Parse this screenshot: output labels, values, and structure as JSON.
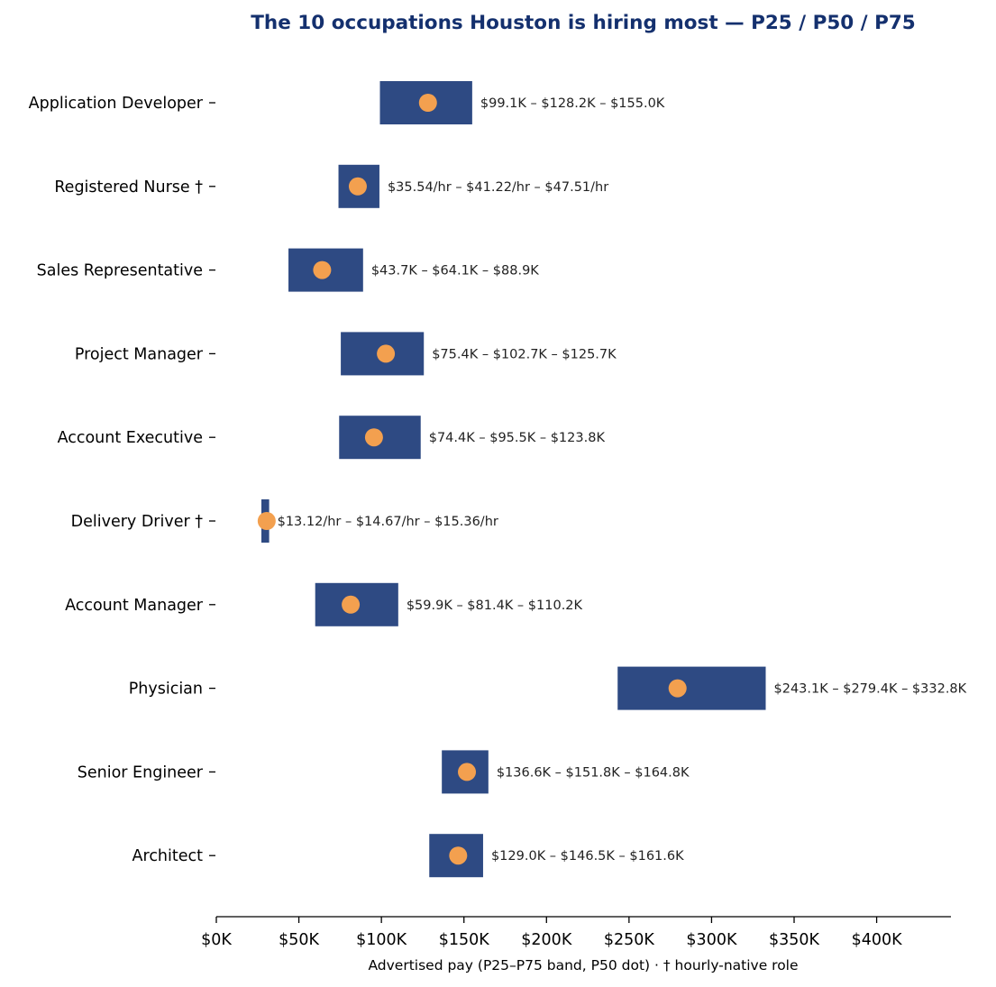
{
  "chart_data": {
    "type": "bar",
    "title": "The 10 occupations Houston is hiring most — P25 / P50 / P75",
    "xlabel": "Advertised pay (P25–P75 band, P50 dot) · † hourly-native role",
    "ylabel": "",
    "xlim": [
      0,
      445000
    ],
    "xticks": [
      0,
      50000,
      100000,
      150000,
      200000,
      250000,
      300000,
      350000,
      400000
    ],
    "xtick_labels": [
      "$0K",
      "$50K",
      "$100K",
      "$150K",
      "$200K",
      "$250K",
      "$300K",
      "$350K",
      "$400K"
    ],
    "grid": false,
    "legend": "none",
    "colors": {
      "band": "#2e4a83",
      "median": "#f3a04f",
      "title": "#14306e"
    },
    "categories": [
      "Application Developer",
      "Registered Nurse †",
      "Sales Representative",
      "Project Manager",
      "Account Executive",
      "Delivery Driver †",
      "Account Manager",
      "Physician",
      "Senior Engineer",
      "Architect"
    ],
    "p25": [
      99100,
      74000,
      43700,
      75400,
      74400,
      27300,
      59900,
      243100,
      136600,
      129000
    ],
    "p50": [
      128200,
      85700,
      64100,
      102700,
      95500,
      30500,
      81400,
      279400,
      151800,
      146500
    ],
    "p75": [
      155000,
      98800,
      88900,
      125700,
      123800,
      32000,
      110200,
      332800,
      164800,
      161600
    ],
    "data_labels": [
      "$99.1K – $128.2K – $155.0K",
      "$35.54/hr – $41.22/hr – $47.51/hr",
      "$43.7K – $64.1K – $88.9K",
      "$75.4K – $102.7K – $125.7K",
      "$74.4K – $95.5K – $123.8K",
      "$13.12/hr – $14.67/hr – $15.36/hr",
      "$59.9K – $81.4K – $110.2K",
      "$243.1K – $279.4K – $332.8K",
      "$136.6K – $151.8K – $164.8K",
      "$129.0K – $146.5K – $161.6K"
    ]
  }
}
